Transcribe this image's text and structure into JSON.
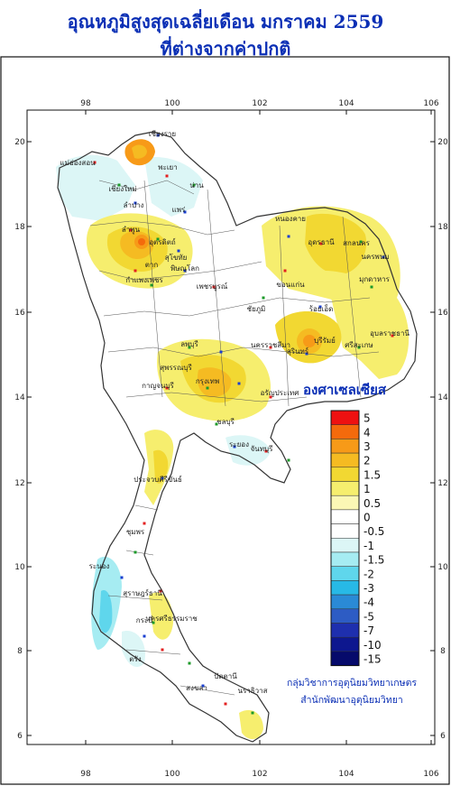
{
  "title": {
    "line1": "อุณหภูมิสูงสุดเฉลี่ยเดือน  มกราคม 2559",
    "line2": "ที่ต่างจากค่าปกติ"
  },
  "axes": {
    "x_ticks": [
      "98",
      "100",
      "102",
      "104",
      "106"
    ],
    "y_ticks": [
      "20",
      "18",
      "16",
      "14",
      "12",
      "10",
      "8",
      "6"
    ]
  },
  "unit_label": "องศาเซลเซียส",
  "legend": {
    "items": [
      {
        "label": "5",
        "color": "#ee1111"
      },
      {
        "label": "4",
        "color": "#f46a0c"
      },
      {
        "label": "3",
        "color": "#f79a18"
      },
      {
        "label": "2",
        "color": "#f5bb22"
      },
      {
        "label": "1.5",
        "color": "#f2d832"
      },
      {
        "label": "1",
        "color": "#f6ee6e"
      },
      {
        "label": "0.5",
        "color": "#fbf7b5"
      },
      {
        "label": "0",
        "color": "#ffffff"
      },
      {
        "label": "-0.5",
        "color": "#ffffff"
      },
      {
        "label": "-1",
        "color": "#dcf6f6"
      },
      {
        "label": "-1.5",
        "color": "#a6ecf2"
      },
      {
        "label": "-2",
        "color": "#5fd6ec"
      },
      {
        "label": "-3",
        "color": "#27b9e6"
      },
      {
        "label": "-4",
        "color": "#2a8ad6"
      },
      {
        "label": "-5",
        "color": "#2d5cc4"
      },
      {
        "label": "-7",
        "color": "#1e2fae"
      },
      {
        "label": "-10",
        "color": "#0d178f"
      },
      {
        "label": "-15",
        "color": "#060a6b"
      }
    ]
  },
  "credit": {
    "line1": "กลุ่มวิชาการอุตุนิยมวิทยาเกษตร",
    "line2": "สำนักพัฒนาอุตุนิยมวิทยา"
  },
  "place_labels": [
    "เชียงราย",
    "แม่ฮ่องสอน",
    "เชียงใหม่",
    "ลำปาง",
    "พะเยา",
    "น่าน",
    "แพร่",
    "ลำพูน",
    "อุตรดิตถ์",
    "ตาก",
    "สุโขทัย",
    "กำแพงเพชร",
    "พิษณุโลก",
    "เพชรบูรณ์",
    "ชัยภูมิ",
    "หนองคาย",
    "อุดรธานี",
    "สกลนคร",
    "นครพนม",
    "ขอนแก่น",
    "มุกดาหาร",
    "ร้อยเอ็ด",
    "อุบลราชธานี",
    "ศรีสะเกษ",
    "บุรีรัมย์",
    "สุรินทร์",
    "นครราชสีมา",
    "ลพบุรี",
    "กาญจนบุรี",
    "สุพรรณบุรี",
    "กรุงเทพ",
    "อรัญประเทศ",
    "ชลบุรี",
    "ระยอง",
    "จันทบุรี",
    "ประจวบคีรีขันธ์",
    "ชุมพร",
    "ระนอง",
    "สุราษฎร์ธานี",
    "กระบี่",
    "นครศรีธรรมราช",
    "ตรัง",
    "สงขลา",
    "นราธิวาส",
    "ปัตตานี"
  ]
}
